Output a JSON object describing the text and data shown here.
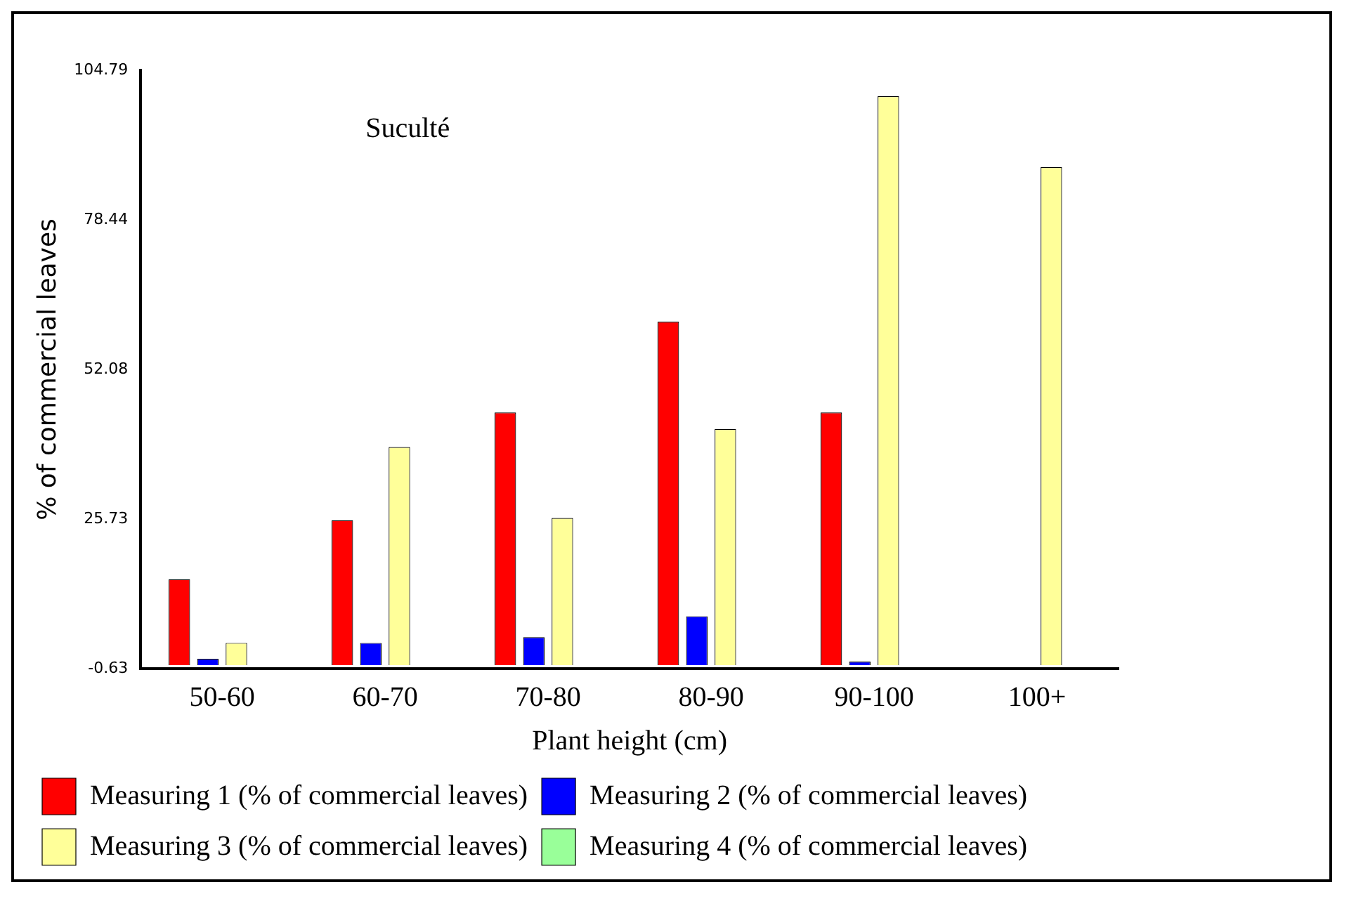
{
  "chart_data": {
    "type": "bar",
    "xlabel": "Plant height (cm)",
    "ylabel": "% of commercial leaves",
    "annotations": [
      "Suculté"
    ],
    "categories": [
      "50-60",
      "60-70",
      "70-80",
      "80-90",
      "90-100",
      "100+"
    ],
    "series": [
      {
        "name": "Measuring 1 (% of commercial leaves)",
        "color": "#ff0000",
        "values": [
          15.1,
          25.5,
          44.5,
          60.5,
          44.5,
          null
        ]
      },
      {
        "name": "Measuring 2 (% of commercial leaves)",
        "color": "#0000ff",
        "values": [
          1.1,
          3.9,
          4.9,
          8.6,
          0.6,
          null
        ]
      },
      {
        "name": "Measuring 3 (% of commercial leaves)",
        "color": "#ffff99",
        "values": [
          3.9,
          38.4,
          25.9,
          41.6,
          100.2,
          87.7
        ]
      },
      {
        "name": "Measuring 4 (% of commercial leaves)",
        "color": "#99ff99",
        "values": [
          null,
          null,
          null,
          null,
          null,
          null
        ]
      }
    ],
    "ylim": [
      -0.63,
      104.79
    ],
    "yticks": [
      -0.63,
      25.73,
      52.08,
      78.44,
      104.79
    ],
    "grid": false,
    "legend": "bottom"
  }
}
